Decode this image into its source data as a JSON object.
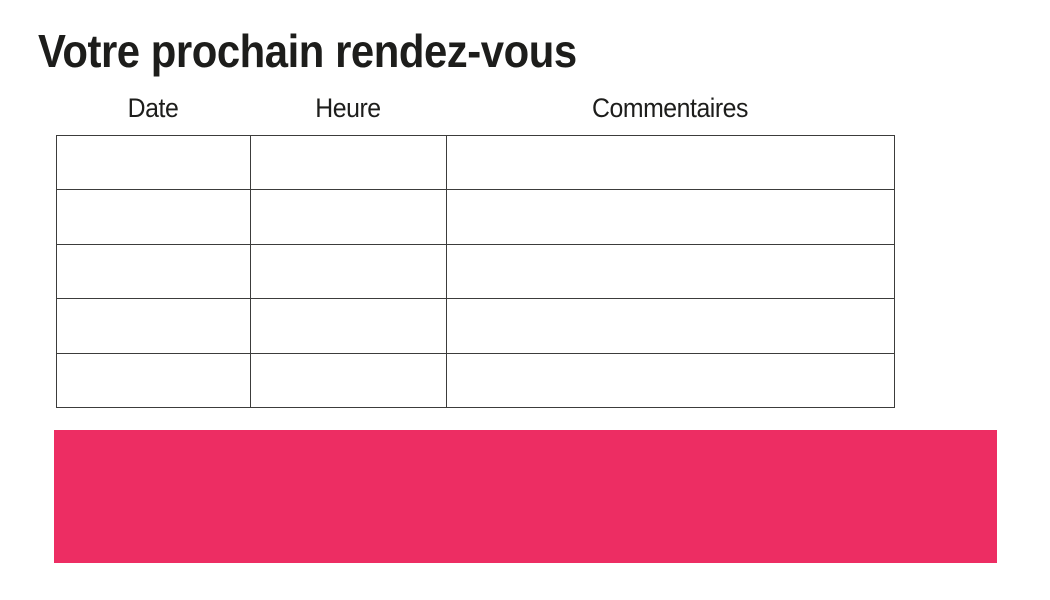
{
  "page": {
    "title": "Votre prochain rendez-vous"
  },
  "appointment_table": {
    "headers": [
      "Date",
      "Heure",
      "Commentaires"
    ],
    "rows": [
      [
        "",
        "",
        ""
      ],
      [
        "",
        "",
        ""
      ],
      [
        "",
        "",
        ""
      ],
      [
        "",
        "",
        ""
      ],
      [
        "",
        "",
        ""
      ]
    ]
  },
  "colors": {
    "accent_pink": "#ed2d63",
    "table_border": "#3c3c3b",
    "text": "#1d1d1b"
  }
}
